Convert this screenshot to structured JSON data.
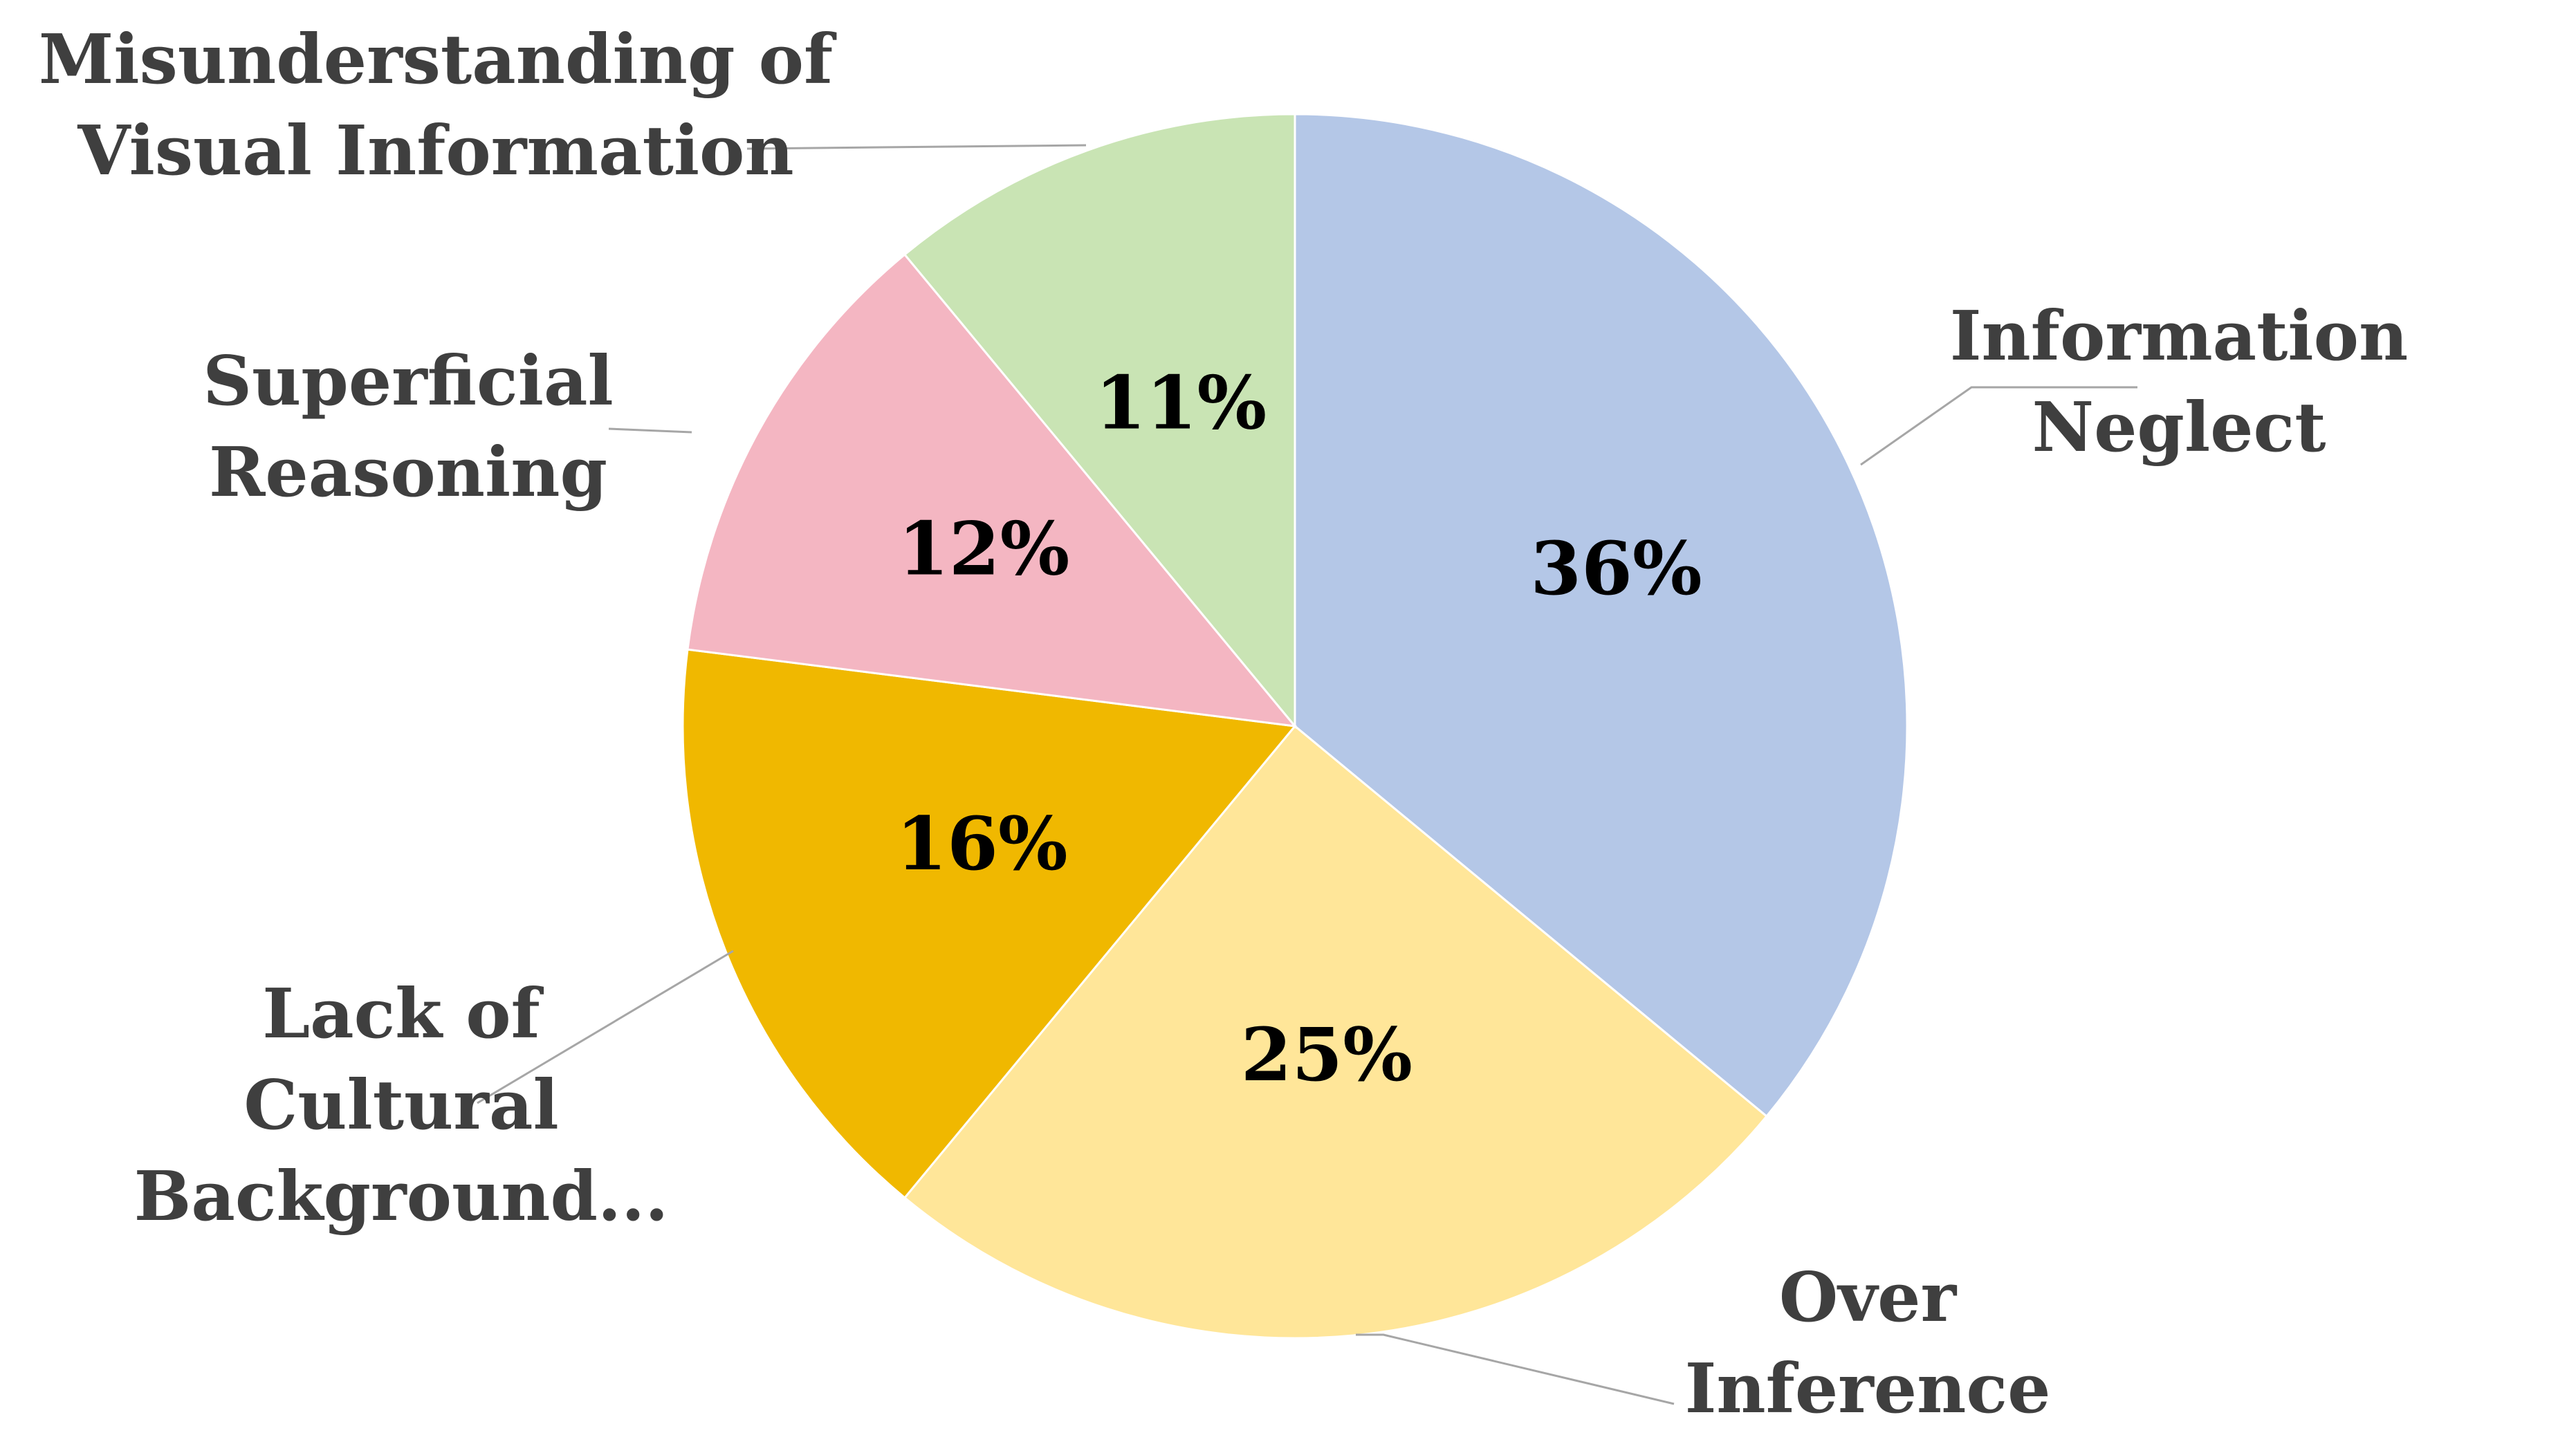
{
  "chart_data": {
    "type": "pie",
    "categories": [
      "Information Neglect",
      "Over Inference",
      "Lack of Cultural Background...",
      "Superficial Reasoning",
      "Misunderstanding of Visual Information"
    ],
    "values": [
      36,
      25,
      16,
      12,
      11
    ],
    "value_labels": [
      "36%",
      "25%",
      "16%",
      "12%",
      "11%"
    ],
    "label_lines": [
      [
        "Information",
        "Neglect"
      ],
      [
        "Over",
        "Inference"
      ],
      [
        "Lack of",
        "Cultural",
        "Background..."
      ],
      [
        "Superficial",
        "Reasoning"
      ],
      [
        "Misunderstanding of",
        "Visual Information"
      ]
    ],
    "colors": [
      "#b4c7e7",
      "#ffe699",
      "#f0b800",
      "#f4b6c2",
      "#c9e4b4"
    ],
    "start_angle": "12 o'clock",
    "direction": "clockwise",
    "legend": "none",
    "data_labels": "inside",
    "category_labels": "outside with leader lines"
  }
}
